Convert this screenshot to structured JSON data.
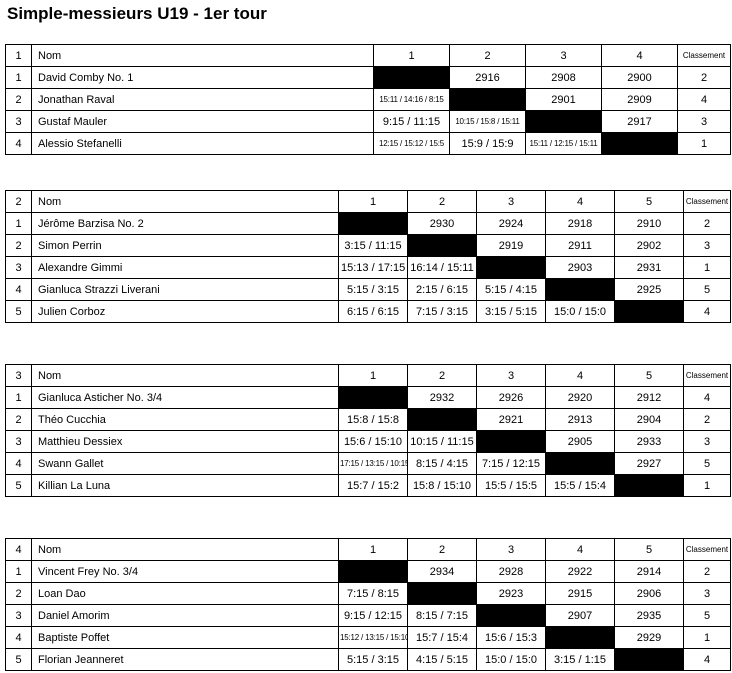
{
  "title": "Simple-messieurs U19 - 1er tour",
  "labels": {
    "nom": "Nom",
    "classement": "Classement"
  },
  "colors": {
    "text": "#000000",
    "border": "#000000",
    "diagonal_fill": "#000000",
    "background": "#ffffff"
  },
  "tables": [
    {
      "number": "1",
      "opponent_headers": [
        "1",
        "2",
        "3",
        "4"
      ],
      "rows": [
        {
          "pos": "1",
          "name": "David Comby No. 1",
          "cells": [
            null,
            "2916",
            "2908",
            "2900"
          ],
          "classement": "2"
        },
        {
          "pos": "2",
          "name": "Jonathan Raval",
          "cells": [
            "15:11 / 14:16 / 8:15",
            null,
            "2901",
            "2909"
          ],
          "classement": "4"
        },
        {
          "pos": "3",
          "name": "Gustaf Mauler",
          "cells": [
            "9:15 / 11:15",
            "10:15 / 15:8 / 15:11",
            null,
            "2917"
          ],
          "classement": "3"
        },
        {
          "pos": "4",
          "name": "Alessio Stefanelli",
          "cells": [
            "12:15 / 15:12 / 15:5",
            "15:9 / 15:9",
            "15:11 / 12:15 / 15:11",
            null
          ],
          "classement": "1"
        }
      ]
    },
    {
      "number": "2",
      "opponent_headers": [
        "1",
        "2",
        "3",
        "4",
        "5"
      ],
      "rows": [
        {
          "pos": "1",
          "name": "Jérôme Barzisa No. 2",
          "cells": [
            null,
            "2930",
            "2924",
            "2918",
            "2910"
          ],
          "classement": "2"
        },
        {
          "pos": "2",
          "name": "Simon Perrin",
          "cells": [
            "3:15 / 11:15",
            null,
            "2919",
            "2911",
            "2902"
          ],
          "classement": "3"
        },
        {
          "pos": "3",
          "name": "Alexandre Gimmi",
          "cells": [
            "15:13 / 17:15",
            "16:14 / 15:11",
            null,
            "2903",
            "2931"
          ],
          "classement": "1"
        },
        {
          "pos": "4",
          "name": "Gianluca Strazzi Liverani",
          "cells": [
            "5:15 / 3:15",
            "2:15 / 6:15",
            "5:15 / 4:15",
            null,
            "2925"
          ],
          "classement": "5"
        },
        {
          "pos": "5",
          "name": "Julien Corboz",
          "cells": [
            "6:15 / 6:15",
            "7:15 / 3:15",
            "3:15 / 5:15",
            "15:0 / 15:0",
            null
          ],
          "classement": "4"
        }
      ]
    },
    {
      "number": "3",
      "opponent_headers": [
        "1",
        "2",
        "3",
        "4",
        "5"
      ],
      "rows": [
        {
          "pos": "1",
          "name": "Gianluca Asticher No. 3/4",
          "cells": [
            null,
            "2932",
            "2926",
            "2920",
            "2912"
          ],
          "classement": "4"
        },
        {
          "pos": "2",
          "name": "Théo Cucchia",
          "cells": [
            "15:8 / 15:8",
            null,
            "2921",
            "2913",
            "2904"
          ],
          "classement": "2"
        },
        {
          "pos": "3",
          "name": "Matthieu Dessiex",
          "cells": [
            "15:6 / 15:10",
            "10:15 / 11:15",
            null,
            "2905",
            "2933"
          ],
          "classement": "3"
        },
        {
          "pos": "4",
          "name": "Swann Gallet",
          "cells": [
            "17:15 / 13:15 / 10:15",
            "8:15 / 4:15",
            "7:15 / 12:15",
            null,
            "2927"
          ],
          "classement": "5"
        },
        {
          "pos": "5",
          "name": "Killian La Luna",
          "cells": [
            "15:7 / 15:2",
            "15:8 / 15:10",
            "15:5 / 15:5",
            "15:5 / 15:4",
            null
          ],
          "classement": "1"
        }
      ]
    },
    {
      "number": "4",
      "opponent_headers": [
        "1",
        "2",
        "3",
        "4",
        "5"
      ],
      "rows": [
        {
          "pos": "1",
          "name": "Vincent Frey No. 3/4",
          "cells": [
            null,
            "2934",
            "2928",
            "2922",
            "2914"
          ],
          "classement": "2"
        },
        {
          "pos": "2",
          "name": "Loan Dao",
          "cells": [
            "7:15 / 8:15",
            null,
            "2923",
            "2915",
            "2906"
          ],
          "classement": "3"
        },
        {
          "pos": "3",
          "name": "Daniel Amorim",
          "cells": [
            "9:15 / 12:15",
            "8:15 / 7:15",
            null,
            "2907",
            "2935"
          ],
          "classement": "5"
        },
        {
          "pos": "4",
          "name": "Baptiste Poffet",
          "cells": [
            "15:12 / 13:15 / 15:10",
            "15:7 / 15:4",
            "15:6 / 15:3",
            null,
            "2929"
          ],
          "classement": "1"
        },
        {
          "pos": "5",
          "name": "Florian Jeanneret",
          "cells": [
            "5:15 / 3:15",
            "4:15 / 5:15",
            "15:0 / 15:0",
            "3:15 / 1:15",
            null
          ],
          "classement": "4"
        }
      ]
    }
  ]
}
